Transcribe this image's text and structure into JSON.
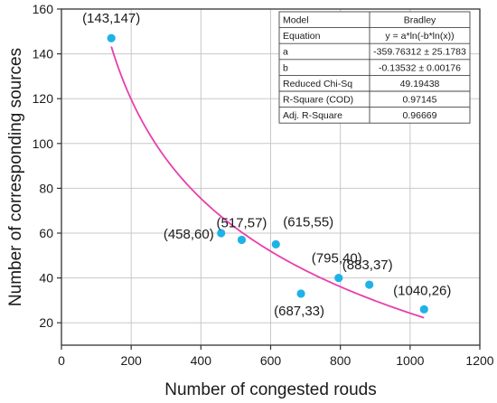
{
  "chart_data": {
    "type": "scatter",
    "xlabel": "Number of congested rouds",
    "ylabel": "Number of corresponding sources",
    "xlim": [
      0,
      1200
    ],
    "ylim": [
      10,
      160
    ],
    "xticks": [
      0,
      200,
      400,
      600,
      800,
      1000,
      1200
    ],
    "yticks": [
      20,
      40,
      60,
      80,
      100,
      120,
      140,
      160
    ],
    "grid": true,
    "colors": {
      "points": "#1fb2e8",
      "fit": "#e83fae",
      "grid": "#c8c8c8",
      "axis": "#333333"
    },
    "points": [
      {
        "x": 143,
        "y": 147,
        "label": "(143,147)"
      },
      {
        "x": 458,
        "y": 60,
        "label": "(458,60)"
      },
      {
        "x": 517,
        "y": 57,
        "label": "(517,57)"
      },
      {
        "x": 615,
        "y": 55,
        "label": "(615,55)"
      },
      {
        "x": 687,
        "y": 33,
        "label": "(687,33)"
      },
      {
        "x": 795,
        "y": 40,
        "label": "(795,40)"
      },
      {
        "x": 883,
        "y": 37,
        "label": "(883,37)"
      },
      {
        "x": 1040,
        "y": 26,
        "label": "(1040,26)"
      }
    ],
    "fit": {
      "model": "Bradley",
      "a": -359.76312,
      "b": -0.13532,
      "x_range": [
        143,
        1040
      ],
      "stats_table": [
        {
          "label": "Model",
          "value": "Bradley"
        },
        {
          "label": "Equation",
          "value": "y = a*ln(-b*ln(x))"
        },
        {
          "label": "a",
          "value": "-359.76312 ± 25.1783"
        },
        {
          "label": "b",
          "value": "-0.13532 ± 0.00176"
        },
        {
          "label": "Reduced Chi-Sq",
          "value": "49.19438"
        },
        {
          "label": "R-Square (COD)",
          "value": "0.97145"
        },
        {
          "label": "Adj. R-Square",
          "value": "0.96669"
        }
      ]
    }
  }
}
